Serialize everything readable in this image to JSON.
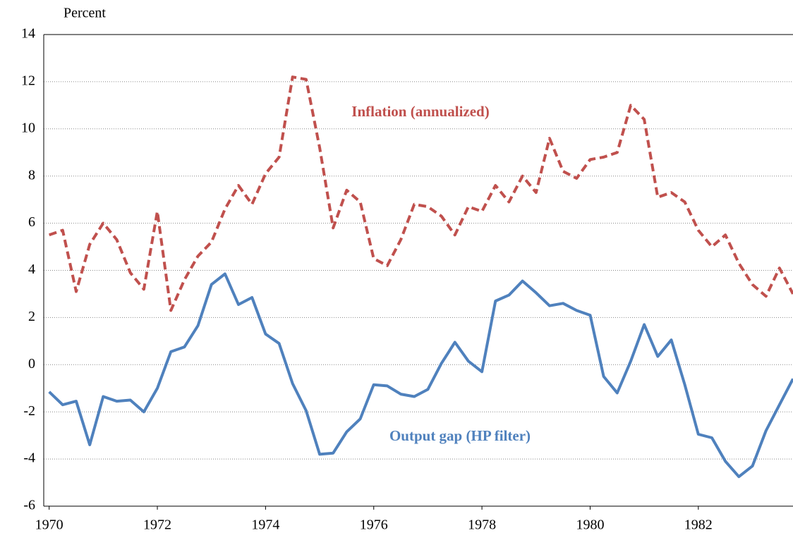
{
  "chart_data": {
    "type": "line",
    "y_label": "Percent",
    "x": [
      1970,
      1970.25,
      1970.5,
      1970.75,
      1971,
      1971.25,
      1971.5,
      1971.75,
      1972,
      1972.25,
      1972.5,
      1972.75,
      1973,
      1973.25,
      1973.5,
      1973.75,
      1974,
      1974.25,
      1974.5,
      1974.75,
      1975,
      1975.25,
      1975.5,
      1975.75,
      1976,
      1976.25,
      1976.5,
      1976.75,
      1977,
      1977.25,
      1977.5,
      1977.75,
      1978,
      1978.25,
      1978.5,
      1978.75,
      1979,
      1979.25,
      1979.5,
      1979.75,
      1980,
      1980.25,
      1980.5,
      1980.75,
      1981,
      1981.25,
      1981.5,
      1981.75,
      1982,
      1982.25,
      1982.5,
      1982.75,
      1983,
      1983.25,
      1983.5,
      1983.75
    ],
    "series": [
      {
        "name": "Inflation (annualized)",
        "color": "#c0504d",
        "dashed": true,
        "values": [
          5.5,
          5.7,
          3.1,
          5.1,
          6.0,
          5.3,
          3.9,
          3.2,
          6.5,
          2.3,
          3.6,
          4.6,
          5.2,
          6.6,
          7.6,
          6.8,
          8.1,
          8.8,
          12.2,
          12.1,
          9.2,
          5.8,
          7.4,
          6.9,
          4.5,
          4.2,
          5.3,
          6.8,
          6.7,
          6.3,
          5.5,
          6.7,
          6.5,
          7.6,
          6.9,
          8.0,
          7.3,
          9.6,
          8.2,
          7.9,
          8.7,
          8.8,
          9.0,
          11.0,
          10.4,
          7.1,
          7.3,
          6.9,
          5.7,
          5.0,
          5.5,
          4.3,
          3.4,
          2.9,
          4.1,
          3.0
        ]
      },
      {
        "name": "Output gap (HP filter)",
        "color": "#4f81bd",
        "dashed": false,
        "values": [
          -1.15,
          -1.7,
          -1.55,
          -3.4,
          -1.35,
          -1.55,
          -1.5,
          -2.0,
          -1.0,
          0.55,
          0.75,
          1.65,
          3.4,
          3.85,
          2.55,
          2.85,
          1.3,
          0.9,
          -0.8,
          -1.95,
          -3.8,
          -3.75,
          -2.85,
          -2.3,
          -0.85,
          -0.9,
          -1.25,
          -1.35,
          -1.05,
          0.05,
          0.95,
          0.15,
          -0.3,
          2.7,
          2.95,
          3.55,
          3.05,
          2.5,
          2.6,
          2.3,
          2.1,
          -0.5,
          -1.2,
          0.15,
          1.7,
          0.35,
          1.05,
          -0.85,
          -2.95,
          -3.1,
          -4.1,
          -4.75,
          -4.3,
          -2.8,
          -1.7,
          -0.6
        ]
      }
    ],
    "xlim": [
      1969.9,
      1983.75
    ],
    "xticks": [
      1970,
      1972,
      1974,
      1976,
      1978,
      1980,
      1982
    ],
    "ylim": [
      -6,
      14
    ],
    "yticks": [
      -6,
      -4,
      -2,
      0,
      2,
      4,
      6,
      8,
      10,
      12,
      14
    ],
    "grid": true
  }
}
